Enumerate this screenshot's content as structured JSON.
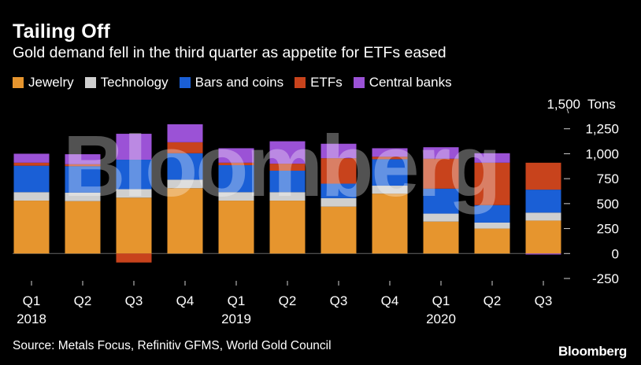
{
  "chart_data": {
    "type": "bar",
    "stacked": true,
    "title": "Tailing Off",
    "subtitle": "Gold demand fell in the third quarter as appetite for ETFs eased",
    "ylabel": "Tons",
    "ylim": [
      -250,
      1500
    ],
    "yticks": [
      -250,
      0,
      250,
      500,
      750,
      1000,
      1250,
      1500
    ],
    "ytick_labels": [
      "-250",
      "0",
      "250",
      "500",
      "750",
      "1,000",
      "1,250",
      "1,500"
    ],
    "categories": [
      "Q1",
      "Q2",
      "Q3",
      "Q4",
      "Q1",
      "Q2",
      "Q3",
      "Q4",
      "Q1",
      "Q2",
      "Q3"
    ],
    "year_labels": [
      {
        "label": "2018",
        "index": 0
      },
      {
        "label": "2019",
        "index": 4
      },
      {
        "label": "2020",
        "index": 8
      }
    ],
    "series": [
      {
        "name": "Jewelry",
        "color": "#e6952e",
        "values": [
          530,
          525,
          560,
          655,
          530,
          530,
          470,
          600,
          320,
          250,
          330
        ]
      },
      {
        "name": "Technology",
        "color": "#cfcfcf",
        "values": [
          85,
          85,
          85,
          85,
          85,
          85,
          85,
          80,
          80,
          60,
          80
        ]
      },
      {
        "name": "Bars and coins",
        "color": "#1a5fd6",
        "values": [
          265,
          265,
          295,
          265,
          270,
          215,
          145,
          265,
          250,
          175,
          230
        ]
      },
      {
        "name": "ETFs",
        "color": "#c8431c",
        "values": [
          30,
          20,
          -90,
          110,
          25,
          70,
          255,
          25,
          300,
          425,
          270
        ]
      },
      {
        "name": "Central banks",
        "color": "#9b52d6",
        "values": [
          90,
          100,
          260,
          180,
          145,
          225,
          145,
          85,
          115,
          95,
          -10
        ]
      }
    ]
  },
  "source": "Source: Metals Focus, Refinitiv GFMS, World Gold Council",
  "brand": "Bloomberg",
  "watermark": "Bloomberg"
}
